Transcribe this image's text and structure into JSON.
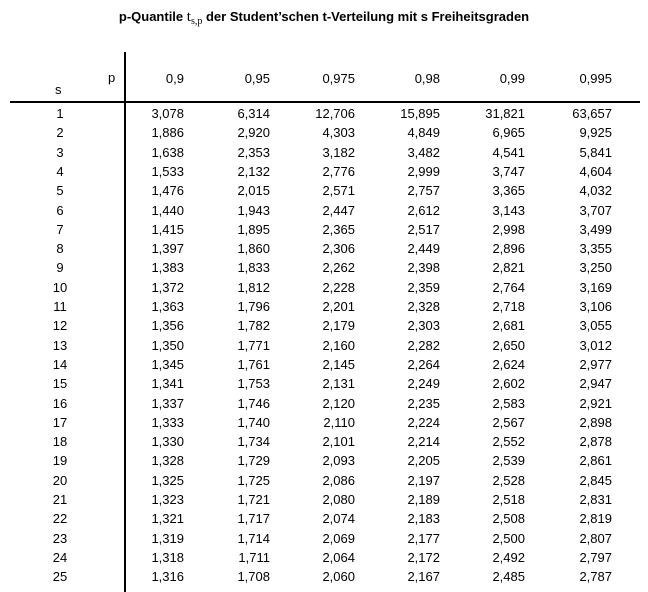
{
  "title": {
    "prefix": "p-Quantile",
    "symbol": "t",
    "subscript": "s,p",
    "suffix": "der Student’schen t-Verteilung mit s Freiheitsgraden"
  },
  "header": {
    "s_label": "s",
    "p_label": "p",
    "columns": [
      "0,9",
      "0,95",
      "0,975",
      "0,98",
      "0,99",
      "0,995"
    ]
  },
  "rows": [
    {
      "s": "1",
      "values": [
        "3,078",
        "6,314",
        "12,706",
        "15,895",
        "31,821",
        "63,657"
      ]
    },
    {
      "s": "2",
      "values": [
        "1,886",
        "2,920",
        "4,303",
        "4,849",
        "6,965",
        "9,925"
      ]
    },
    {
      "s": "3",
      "values": [
        "1,638",
        "2,353",
        "3,182",
        "3,482",
        "4,541",
        "5,841"
      ]
    },
    {
      "s": "4",
      "values": [
        "1,533",
        "2,132",
        "2,776",
        "2,999",
        "3,747",
        "4,604"
      ]
    },
    {
      "s": "5",
      "values": [
        "1,476",
        "2,015",
        "2,571",
        "2,757",
        "3,365",
        "4,032"
      ]
    },
    {
      "s": "6",
      "values": [
        "1,440",
        "1,943",
        "2,447",
        "2,612",
        "3,143",
        "3,707"
      ]
    },
    {
      "s": "7",
      "values": [
        "1,415",
        "1,895",
        "2,365",
        "2,517",
        "2,998",
        "3,499"
      ]
    },
    {
      "s": "8",
      "values": [
        "1,397",
        "1,860",
        "2,306",
        "2,449",
        "2,896",
        "3,355"
      ]
    },
    {
      "s": "9",
      "values": [
        "1,383",
        "1,833",
        "2,262",
        "2,398",
        "2,821",
        "3,250"
      ]
    },
    {
      "s": "10",
      "values": [
        "1,372",
        "1,812",
        "2,228",
        "2,359",
        "2,764",
        "3,169"
      ]
    },
    {
      "s": "11",
      "values": [
        "1,363",
        "1,796",
        "2,201",
        "2,328",
        "2,718",
        "3,106"
      ]
    },
    {
      "s": "12",
      "values": [
        "1,356",
        "1,782",
        "2,179",
        "2,303",
        "2,681",
        "3,055"
      ]
    },
    {
      "s": "13",
      "values": [
        "1,350",
        "1,771",
        "2,160",
        "2,282",
        "2,650",
        "3,012"
      ]
    },
    {
      "s": "14",
      "values": [
        "1,345",
        "1,761",
        "2,145",
        "2,264",
        "2,624",
        "2,977"
      ]
    },
    {
      "s": "15",
      "values": [
        "1,341",
        "1,753",
        "2,131",
        "2,249",
        "2,602",
        "2,947"
      ]
    },
    {
      "s": "16",
      "values": [
        "1,337",
        "1,746",
        "2,120",
        "2,235",
        "2,583",
        "2,921"
      ]
    },
    {
      "s": "17",
      "values": [
        "1,333",
        "1,740",
        "2,110",
        "2,224",
        "2,567",
        "2,898"
      ]
    },
    {
      "s": "18",
      "values": [
        "1,330",
        "1,734",
        "2,101",
        "2,214",
        "2,552",
        "2,878"
      ]
    },
    {
      "s": "19",
      "values": [
        "1,328",
        "1,729",
        "2,093",
        "2,205",
        "2,539",
        "2,861"
      ]
    },
    {
      "s": "20",
      "values": [
        "1,325",
        "1,725",
        "2,086",
        "2,197",
        "2,528",
        "2,845"
      ]
    },
    {
      "s": "21",
      "values": [
        "1,323",
        "1,721",
        "2,080",
        "2,189",
        "2,518",
        "2,831"
      ]
    },
    {
      "s": "22",
      "values": [
        "1,321",
        "1,717",
        "2,074",
        "2,183",
        "2,508",
        "2,819"
      ]
    },
    {
      "s": "23",
      "values": [
        "1,319",
        "1,714",
        "2,069",
        "2,177",
        "2,500",
        "2,807"
      ]
    },
    {
      "s": "24",
      "values": [
        "1,318",
        "1,711",
        "2,064",
        "2,172",
        "2,492",
        "2,797"
      ]
    },
    {
      "s": "25",
      "values": [
        "1,316",
        "1,708",
        "2,060",
        "2,167",
        "2,485",
        "2,787"
      ]
    }
  ]
}
